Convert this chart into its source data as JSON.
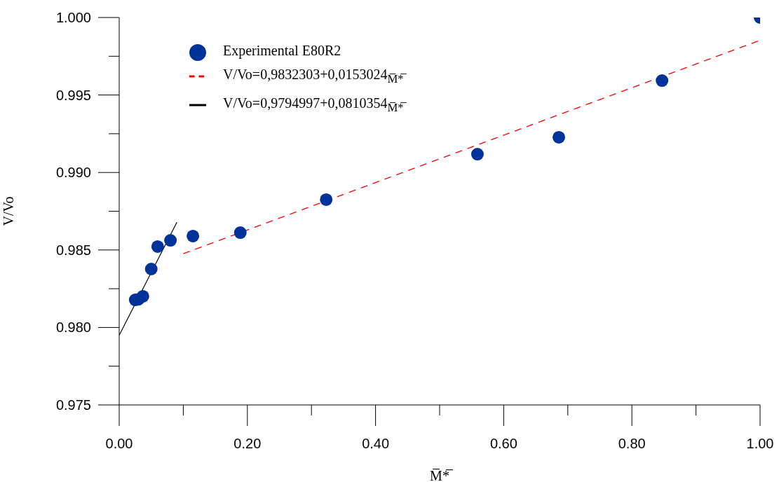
{
  "chart_data": {
    "type": "scatter",
    "xlabel": "M̅*̅",
    "ylabel": "V/Vo",
    "xlim": [
      0,
      1
    ],
    "ylim": [
      0.975,
      1
    ],
    "xticks": [
      {
        "value": 0,
        "label": "0.00"
      },
      {
        "value": 0.1,
        "label": null
      },
      {
        "value": 0.2,
        "label": "0.20"
      },
      {
        "value": 0.3,
        "label": null
      },
      {
        "value": 0.4,
        "label": "0.40"
      },
      {
        "value": 0.5,
        "label": null
      },
      {
        "value": 0.6,
        "label": "0.60"
      },
      {
        "value": 0.7,
        "label": null
      },
      {
        "value": 0.8,
        "label": "0.80"
      },
      {
        "value": 0.9,
        "label": null
      },
      {
        "value": 1,
        "label": "1.00"
      }
    ],
    "yticks": [
      0.975,
      {
        "value": 0.9775,
        "label": null
      },
      {
        "value": 0.98,
        "label": "0.980"
      },
      {
        "value": 0.9825,
        "label": null
      },
      0.985,
      {
        "value": 0.9875,
        "label": null
      },
      {
        "value": 0.99,
        "label": "0.990"
      },
      {
        "value": 0.9925,
        "label": null
      },
      0.995,
      {
        "value": 0.9975,
        "label": null
      },
      {
        "value": 1,
        "label": "1.000"
      }
    ],
    "legend": "top left",
    "series": [
      {
        "name": "Experimental E80R2",
        "marker": "circle",
        "color": "#003399",
        "x": [
          0.025,
          0.03,
          0.037,
          0.05,
          0.06,
          0.08,
          0.115,
          0.189,
          0.323,
          0.559,
          0.686,
          0.847,
          1.0
        ],
        "values": [
          0.98178,
          0.98182,
          0.98201,
          0.98377,
          0.98522,
          0.98562,
          0.9859,
          0.98612,
          0.98825,
          0.99118,
          0.99227,
          0.99593,
          1.0
        ]
      },
      {
        "name": "V/Vo=0,9832303+0,0153024$_{M̅*̅}$",
        "type": "line",
        "line_style": "dashed",
        "color": "#ff0000",
        "x": [
          0.1,
          1.0
        ],
        "values": [
          0.98476,
          0.99853
        ]
      },
      {
        "name": "V/Vo=0,9794997+0,0810354$_{M̅*̅}$",
        "type": "line",
        "line_style": "solid",
        "color": "#000000",
        "x": [
          0,
          0.09
        ],
        "values": [
          0.9795,
          0.98679
        ]
      }
    ]
  }
}
